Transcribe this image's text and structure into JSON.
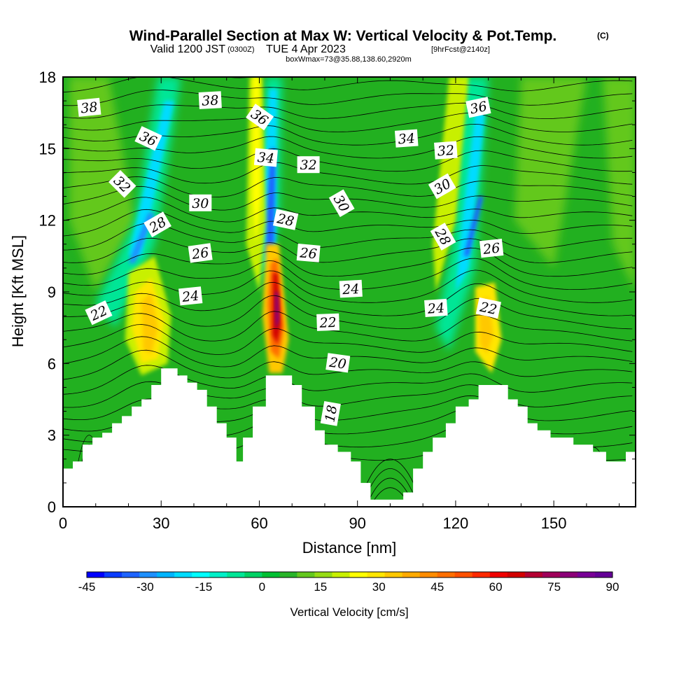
{
  "title": {
    "main": "Wind-Parallel Section at Max W: Vertical Velocity & Pot.Temp.",
    "copyright": "(C)",
    "valid_prefix": "Valid 1200 JST",
    "valid_utc": "(0300Z)",
    "valid_date": "TUE 4 Apr 2023",
    "forecast": "[9hrFcst@2140z]",
    "box_info": "boxWmax=73@35.88,138.60,2920m"
  },
  "chart_data": {
    "type": "heatmap",
    "xlabel": "Distance [nm]",
    "ylabel": "Height [Kft MSL]",
    "xlim": [
      0,
      175
    ],
    "ylim": [
      0,
      18
    ],
    "xticks": [
      "0",
      "30",
      "60",
      "90",
      "120",
      "150"
    ],
    "yticks": [
      "0",
      "3",
      "6",
      "9",
      "12",
      "15",
      "18"
    ],
    "colorbar": {
      "title": "Vertical Velocity [cm/s]",
      "tick_labels": [
        "-45",
        "-30",
        "-15",
        "0",
        "15",
        "30",
        "45",
        "60",
        "75",
        "90"
      ],
      "min": -45,
      "max": 90,
      "colors": [
        "#0000ff",
        "#0a3cff",
        "#1e64ff",
        "#1e90ff",
        "#00b4ff",
        "#00dcff",
        "#00ffff",
        "#00f0c8",
        "#00e696",
        "#00d264",
        "#00c032",
        "#28b428",
        "#64c81e",
        "#96dc14",
        "#c8f000",
        "#ffff00",
        "#ffe600",
        "#ffc800",
        "#ffaa00",
        "#ff8c00",
        "#ff6e00",
        "#ff5000",
        "#ff2800",
        "#f00000",
        "#d20000",
        "#b40032",
        "#a0005a",
        "#8c0078",
        "#780096",
        "#640096"
      ]
    },
    "velocity_maxima": [
      {
        "x": 65,
        "y": 8.5,
        "value": 73
      },
      {
        "x": 27,
        "y": 7.5,
        "value": 35
      },
      {
        "x": 129,
        "y": 7.5,
        "value": 32
      }
    ],
    "velocity_minima": [
      {
        "x": 63,
        "y": 12.5,
        "value": -40
      },
      {
        "x": 124,
        "y": 11.5,
        "value": -40
      },
      {
        "x": 23,
        "y": 11.5,
        "value": -25
      }
    ],
    "terrain": [
      [
        0,
        1.6
      ],
      [
        3,
        1.6
      ],
      [
        3,
        1.9
      ],
      [
        6,
        1.9
      ],
      [
        6,
        2.6
      ],
      [
        9,
        2.6
      ],
      [
        9,
        2.9
      ],
      [
        12,
        2.9
      ],
      [
        12,
        3.1
      ],
      [
        15,
        3.1
      ],
      [
        15,
        3.5
      ],
      [
        18,
        3.5
      ],
      [
        18,
        3.8
      ],
      [
        21,
        3.8
      ],
      [
        21,
        4.2
      ],
      [
        24,
        4.2
      ],
      [
        24,
        4.5
      ],
      [
        27,
        4.5
      ],
      [
        27,
        5.1
      ],
      [
        30,
        5.1
      ],
      [
        30,
        5.8
      ],
      [
        35,
        5.8
      ],
      [
        35,
        5.5
      ],
      [
        38,
        5.5
      ],
      [
        38,
        5.2
      ],
      [
        41,
        5.2
      ],
      [
        41,
        4.9
      ],
      [
        44,
        4.9
      ],
      [
        44,
        4.2
      ],
      [
        47,
        4.2
      ],
      [
        47,
        3.5
      ],
      [
        50,
        3.5
      ],
      [
        50,
        2.9
      ],
      [
        53,
        2.9
      ],
      [
        53,
        1.9
      ],
      [
        55,
        1.9
      ],
      [
        55,
        2.9
      ],
      [
        58,
        2.9
      ],
      [
        58,
        4.2
      ],
      [
        62,
        4.2
      ],
      [
        62,
        5.5
      ],
      [
        70,
        5.5
      ],
      [
        70,
        5.1
      ],
      [
        73,
        5.1
      ],
      [
        73,
        4.2
      ],
      [
        77,
        4.2
      ],
      [
        77,
        3.2
      ],
      [
        80,
        3.2
      ],
      [
        80,
        2.6
      ],
      [
        84,
        2.6
      ],
      [
        84,
        2.3
      ],
      [
        88,
        2.3
      ],
      [
        88,
        1.9
      ],
      [
        91,
        1.9
      ],
      [
        91,
        1.0
      ],
      [
        94,
        1.0
      ],
      [
        94,
        0.3
      ],
      [
        104,
        0.3
      ],
      [
        104,
        0.6
      ],
      [
        107,
        0.6
      ],
      [
        107,
        1.6
      ],
      [
        110,
        1.6
      ],
      [
        110,
        2.3
      ],
      [
        113,
        2.3
      ],
      [
        113,
        2.9
      ],
      [
        117,
        2.9
      ],
      [
        117,
        3.5
      ],
      [
        120,
        3.5
      ],
      [
        120,
        4.2
      ],
      [
        124,
        4.2
      ],
      [
        124,
        4.5
      ],
      [
        127,
        4.5
      ],
      [
        127,
        5.1
      ],
      [
        136,
        5.1
      ],
      [
        136,
        4.5
      ],
      [
        139,
        4.5
      ],
      [
        139,
        4.2
      ],
      [
        142,
        4.2
      ],
      [
        142,
        3.5
      ],
      [
        145,
        3.5
      ],
      [
        145,
        3.2
      ],
      [
        149,
        3.2
      ],
      [
        149,
        2.9
      ],
      [
        156,
        2.9
      ],
      [
        156,
        2.6
      ],
      [
        162,
        2.6
      ],
      [
        162,
        2.3
      ],
      [
        166,
        2.3
      ],
      [
        166,
        1.9
      ],
      [
        172,
        1.9
      ],
      [
        172,
        2.3
      ],
      [
        175,
        2.3
      ]
    ],
    "contour_labels": [
      {
        "text": "38",
        "x": 8,
        "y": 16.7
      },
      {
        "text": "38",
        "x": 45,
        "y": 17.0
      },
      {
        "text": "36",
        "x": 26,
        "y": 15.4
      },
      {
        "text": "36",
        "x": 60,
        "y": 16.3
      },
      {
        "text": "36",
        "x": 127,
        "y": 16.7
      },
      {
        "text": "34",
        "x": 62,
        "y": 14.6
      },
      {
        "text": "34",
        "x": 105,
        "y": 15.4
      },
      {
        "text": "32",
        "x": 18,
        "y": 13.5
      },
      {
        "text": "32",
        "x": 75,
        "y": 14.3
      },
      {
        "text": "32",
        "x": 117,
        "y": 14.9
      },
      {
        "text": "30",
        "x": 42,
        "y": 12.7
      },
      {
        "text": "30",
        "x": 85,
        "y": 12.7
      },
      {
        "text": "30",
        "x": 116,
        "y": 13.4
      },
      {
        "text": "28",
        "x": 29,
        "y": 11.8
      },
      {
        "text": "28",
        "x": 68,
        "y": 12.0
      },
      {
        "text": "28",
        "x": 116,
        "y": 11.3
      },
      {
        "text": "26",
        "x": 42,
        "y": 10.6
      },
      {
        "text": "26",
        "x": 75,
        "y": 10.6
      },
      {
        "text": "26",
        "x": 131,
        "y": 10.8
      },
      {
        "text": "24",
        "x": 39,
        "y": 8.8
      },
      {
        "text": "24",
        "x": 88,
        "y": 9.1
      },
      {
        "text": "24",
        "x": 114,
        "y": 8.3
      },
      {
        "text": "22",
        "x": 11,
        "y": 8.1
      },
      {
        "text": "22",
        "x": 81,
        "y": 7.7
      },
      {
        "text": "22",
        "x": 130,
        "y": 8.3
      },
      {
        "text": "20",
        "x": 84,
        "y": 6.0
      },
      {
        "text": "18",
        "x": 82,
        "y": 3.9
      }
    ]
  }
}
